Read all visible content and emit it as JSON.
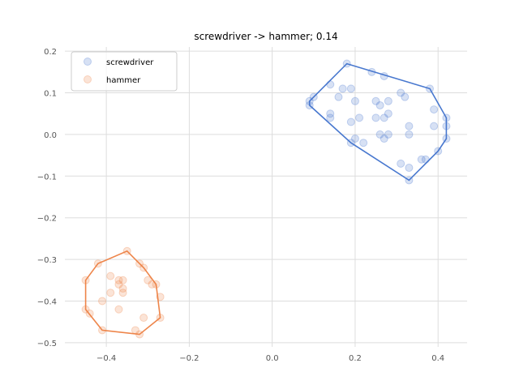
{
  "chart_data": {
    "type": "scatter",
    "title": "screwdriver -> hammer; 0.14",
    "xlabel": "",
    "ylabel": "",
    "xlim": [
      -0.5,
      0.47
    ],
    "ylim": [
      -0.51,
      0.21
    ],
    "xticks": [
      -0.4,
      -0.2,
      0.0,
      0.2,
      0.4
    ],
    "xtick_labels": [
      "−0.4",
      "−0.2",
      "0.0",
      "0.2",
      "0.4"
    ],
    "yticks": [
      -0.5,
      -0.4,
      -0.3,
      -0.2,
      -0.1,
      0.0,
      0.1,
      0.2
    ],
    "ytick_labels": [
      "−0.5",
      "−0.4",
      "−0.3",
      "−0.2",
      "−0.1",
      "0.0",
      "0.1",
      "0.2"
    ],
    "grid": true,
    "legend_position": "top-left",
    "series": [
      {
        "name": "screwdriver",
        "color": "#4878cf",
        "points": [
          [
            0.09,
            0.08
          ],
          [
            0.09,
            0.07
          ],
          [
            0.1,
            0.09
          ],
          [
            0.14,
            0.12
          ],
          [
            0.14,
            0.05
          ],
          [
            0.14,
            0.04
          ],
          [
            0.16,
            0.09
          ],
          [
            0.18,
            0.17
          ],
          [
            0.17,
            0.11
          ],
          [
            0.19,
            0.11
          ],
          [
            0.2,
            0.08
          ],
          [
            0.19,
            0.03
          ],
          [
            0.21,
            0.04
          ],
          [
            0.19,
            -0.02
          ],
          [
            0.2,
            -0.01
          ],
          [
            0.22,
            -0.02
          ],
          [
            0.24,
            0.15
          ],
          [
            0.27,
            0.14
          ],
          [
            0.25,
            0.08
          ],
          [
            0.26,
            0.07
          ],
          [
            0.28,
            0.08
          ],
          [
            0.25,
            0.04
          ],
          [
            0.27,
            0.04
          ],
          [
            0.28,
            0.05
          ],
          [
            0.26,
            0.0
          ],
          [
            0.28,
            0.0
          ],
          [
            0.27,
            -0.01
          ],
          [
            0.31,
            0.1
          ],
          [
            0.32,
            0.09
          ],
          [
            0.33,
            0.02
          ],
          [
            0.33,
            0.0
          ],
          [
            0.31,
            -0.07
          ],
          [
            0.33,
            -0.08
          ],
          [
            0.33,
            -0.11
          ],
          [
            0.36,
            -0.06
          ],
          [
            0.37,
            -0.06
          ],
          [
            0.38,
            0.11
          ],
          [
            0.39,
            0.06
          ],
          [
            0.39,
            0.02
          ],
          [
            0.4,
            -0.04
          ],
          [
            0.42,
            0.04
          ],
          [
            0.42,
            0.02
          ],
          [
            0.42,
            -0.01
          ]
        ],
        "hull": [
          [
            0.09,
            0.08
          ],
          [
            0.18,
            0.17
          ],
          [
            0.38,
            0.11
          ],
          [
            0.42,
            0.04
          ],
          [
            0.42,
            -0.01
          ],
          [
            0.4,
            -0.04
          ],
          [
            0.33,
            -0.11
          ],
          [
            0.19,
            -0.02
          ],
          [
            0.09,
            0.07
          ]
        ]
      },
      {
        "name": "hammer",
        "color": "#ee854a",
        "points": [
          [
            -0.45,
            -0.35
          ],
          [
            -0.45,
            -0.42
          ],
          [
            -0.44,
            -0.43
          ],
          [
            -0.42,
            -0.31
          ],
          [
            -0.41,
            -0.4
          ],
          [
            -0.41,
            -0.47
          ],
          [
            -0.39,
            -0.38
          ],
          [
            -0.39,
            -0.34
          ],
          [
            -0.37,
            -0.36
          ],
          [
            -0.37,
            -0.35
          ],
          [
            -0.36,
            -0.38
          ],
          [
            -0.36,
            -0.37
          ],
          [
            -0.36,
            -0.35
          ],
          [
            -0.37,
            -0.42
          ],
          [
            -0.35,
            -0.28
          ],
          [
            -0.33,
            -0.47
          ],
          [
            -0.32,
            -0.31
          ],
          [
            -0.31,
            -0.32
          ],
          [
            -0.32,
            -0.48
          ],
          [
            -0.31,
            -0.44
          ],
          [
            -0.3,
            -0.35
          ],
          [
            -0.29,
            -0.36
          ],
          [
            -0.28,
            -0.36
          ],
          [
            -0.27,
            -0.39
          ],
          [
            -0.27,
            -0.44
          ]
        ],
        "hull": [
          [
            -0.45,
            -0.35
          ],
          [
            -0.42,
            -0.31
          ],
          [
            -0.35,
            -0.28
          ],
          [
            -0.31,
            -0.32
          ],
          [
            -0.28,
            -0.36
          ],
          [
            -0.27,
            -0.44
          ],
          [
            -0.32,
            -0.48
          ],
          [
            -0.41,
            -0.47
          ],
          [
            -0.45,
            -0.42
          ]
        ]
      }
    ]
  }
}
